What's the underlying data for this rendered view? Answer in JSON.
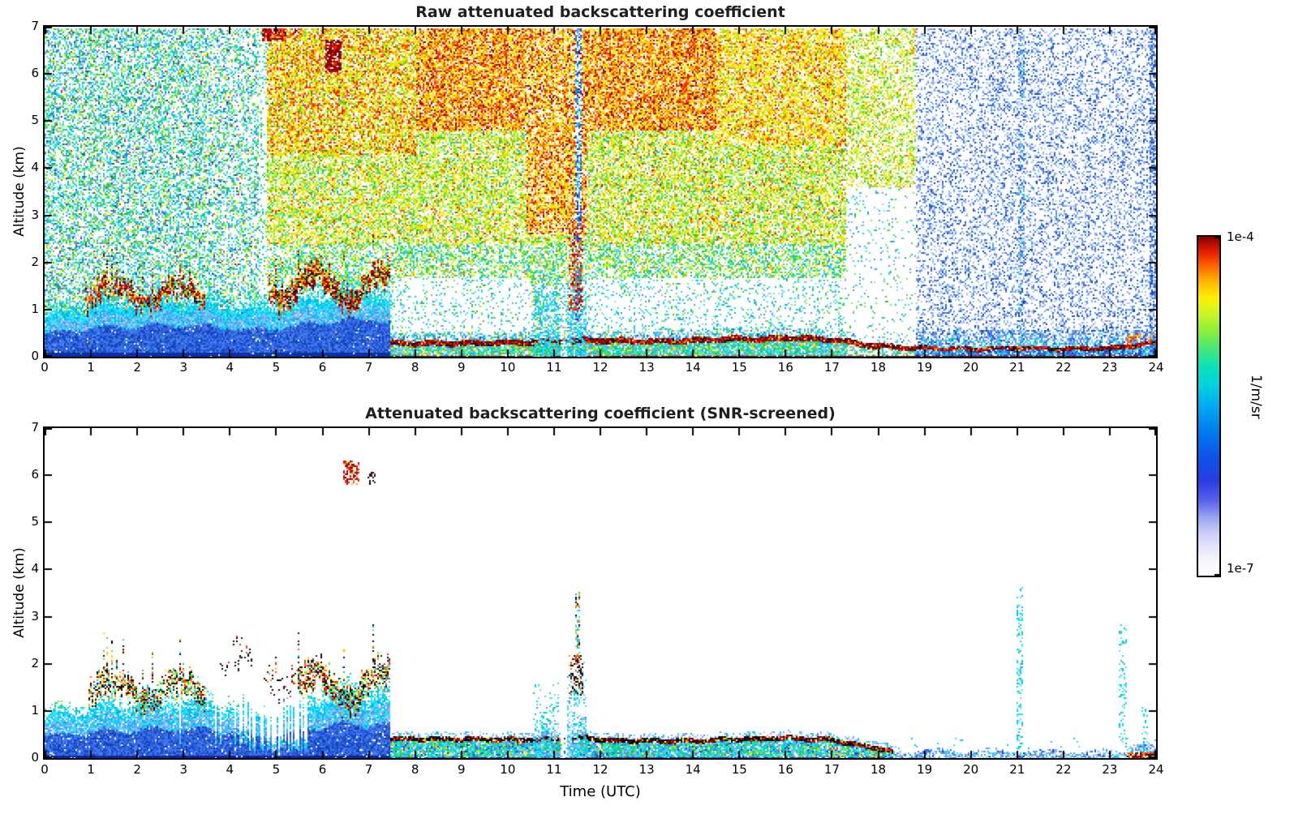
{
  "chart_data": {
    "type": "heatmap",
    "seed": 42,
    "panels": [
      {
        "id": "raw",
        "title": "Raw attenuated backscattering coefficient"
      },
      {
        "id": "screened",
        "title": "Attenuated backscattering coefficient (SNR-screened)"
      }
    ],
    "x_axis": {
      "label": "Time (UTC)",
      "min": 0,
      "max": 24,
      "tick_labels": [
        "0",
        "1",
        "2",
        "3",
        "4",
        "5",
        "6",
        "7",
        "8",
        "9",
        "10",
        "11",
        "12",
        "13",
        "14",
        "15",
        "16",
        "17",
        "18",
        "19",
        "20",
        "21",
        "22",
        "23",
        "24"
      ]
    },
    "y_axis": {
      "label": "Altitude (km)",
      "min": 0,
      "max": 7,
      "tick_labels": [
        "0",
        "1",
        "2",
        "3",
        "4",
        "5",
        "6",
        "7"
      ]
    },
    "colorbar": {
      "unit_label": "1/m/sr",
      "max_label": "1e-4",
      "min_label": "1e-7",
      "stops": [
        [
          0,
          "#ffffff"
        ],
        [
          0.05,
          "#f4f4ff"
        ],
        [
          0.09,
          "#e2e2fa"
        ],
        [
          0.13,
          "#c6caf6"
        ],
        [
          0.17,
          "#9aa6f0"
        ],
        [
          0.22,
          "#5b63ea"
        ],
        [
          0.28,
          "#2a3ce4"
        ],
        [
          0.34,
          "#1050e8"
        ],
        [
          0.42,
          "#0078f0"
        ],
        [
          0.5,
          "#00aaf0"
        ],
        [
          0.56,
          "#00d2e0"
        ],
        [
          0.62,
          "#10e0b8"
        ],
        [
          0.67,
          "#46e878"
        ],
        [
          0.72,
          "#8aee3c"
        ],
        [
          0.77,
          "#c8f42a"
        ],
        [
          0.82,
          "#fff000"
        ],
        [
          0.87,
          "#ffb400"
        ],
        [
          0.915,
          "#ff6400"
        ],
        [
          0.955,
          "#e62000"
        ],
        [
          1,
          "#8c0000"
        ]
      ]
    },
    "palettes": {
      "blue": [
        "#1e53d2",
        "#2c62e0",
        "#3a70e8",
        "#1440b4",
        "#4a7ff0"
      ],
      "blueLight": [
        "#6f9df2",
        "#86aef5",
        "#9dbef7",
        "#5b8df0",
        "#b4cdf8"
      ],
      "cyan": [
        "#00c8f0",
        "#10d6f6",
        "#2ce0fa",
        "#00b4e6",
        "#48e8ff"
      ],
      "teal": [
        "#00e0c8",
        "#20ead2",
        "#00ccb4"
      ],
      "green": [
        "#28c828",
        "#3cd636",
        "#55e044",
        "#76e83a"
      ],
      "yellowgreen": [
        "#9cee32",
        "#b8f22e",
        "#d2f62a"
      ],
      "yellow": [
        "#eef200",
        "#ffe900",
        "#ffdb00"
      ],
      "orange": [
        "#ffb800",
        "#ff9c00",
        "#ff7d00",
        "#ff5f00"
      ],
      "red": [
        "#ff3c14",
        "#ef2505",
        "#d81400"
      ],
      "darkred": [
        "#b00000",
        "#930000",
        "#760000"
      ],
      "black": [
        "#151515",
        "#000000"
      ],
      "navy": [
        "#0a1e96",
        "#0c2caa"
      ]
    },
    "profiles": {
      "mix_height": [
        [
          0,
          0.85
        ],
        [
          0.5,
          0.95
        ],
        [
          1,
          1.05
        ],
        [
          1.5,
          1.05
        ],
        [
          2,
          1.1
        ],
        [
          2.5,
          1.15
        ],
        [
          3,
          1.15
        ],
        [
          3.5,
          1.1
        ],
        [
          4,
          1.05
        ],
        [
          4.5,
          0.95
        ],
        [
          5,
          1.05
        ],
        [
          5.5,
          1.15
        ],
        [
          6,
          1.25
        ],
        [
          6.5,
          1.3
        ],
        [
          7,
          1.35
        ],
        [
          7.45,
          1.3
        ]
      ],
      "red_line": [
        [
          7.5,
          0.3
        ],
        [
          9,
          0.3
        ],
        [
          10.5,
          0.32
        ],
        [
          11,
          0.33
        ],
        [
          11.5,
          0.35
        ],
        [
          12,
          0.36
        ],
        [
          13,
          0.34
        ],
        [
          14,
          0.36
        ],
        [
          15,
          0.4
        ],
        [
          15.5,
          0.38
        ],
        [
          16,
          0.42
        ],
        [
          16.5,
          0.4
        ],
        [
          17,
          0.38
        ],
        [
          17.5,
          0.3
        ],
        [
          18,
          0.24
        ],
        [
          18.8,
          0.2
        ],
        [
          20,
          0.18
        ],
        [
          21,
          0.2
        ],
        [
          22,
          0.18
        ],
        [
          23,
          0.2
        ],
        [
          23.4,
          0.24
        ],
        [
          24,
          0.3
        ]
      ],
      "black_line": [
        [
          7.5,
          0.42
        ],
        [
          9,
          0.42
        ],
        [
          10.5,
          0.4
        ],
        [
          11,
          0.42
        ],
        [
          11.7,
          0.45
        ],
        [
          12,
          0.4
        ],
        [
          13,
          0.38
        ],
        [
          14,
          0.38
        ],
        [
          15,
          0.42
        ],
        [
          16,
          0.44
        ],
        [
          17,
          0.4
        ],
        [
          17.5,
          0.3
        ],
        [
          18,
          0.22
        ],
        [
          18.3,
          0.15
        ]
      ]
    },
    "raw": {
      "noise_regions": [
        {
          "t": [
            21.0,
            21.14
          ],
          "a": [
            0,
            7
          ],
          "d": 0.55,
          "pal": {
            "blueLight": 3,
            "blue": 2,
            "cyan": 1
          }
        },
        {
          "t": [
            23.84,
            24
          ],
          "a": [
            0,
            7
          ],
          "d": 0.6,
          "pal": {
            "blue": 3,
            "blueLight": 2
          }
        },
        {
          "t": [
            18.8,
            24
          ],
          "a": [
            0,
            7
          ],
          "d": 0.3,
          "pal": {
            "blueLight": 3,
            "blue": 1.6
          }
        },
        {
          "t": [
            17.3,
            18.8
          ],
          "a": [
            3.6,
            7
          ],
          "d": 0.45,
          "pal": {
            "yellowgreen": 3,
            "yellow": 2,
            "green": 2,
            "orange": 1
          }
        },
        {
          "t": [
            17.3,
            18.8
          ],
          "a": [
            0,
            3.6
          ],
          "d": 0.06,
          "pal": {
            "cyan": 1,
            "green": 1,
            "blueLight": 1
          }
        },
        {
          "t": [
            4.68,
            5.2
          ],
          "a": [
            6.72,
            7
          ],
          "d": 0.85,
          "pal": {
            "darkred": 5,
            "red": 3,
            "orange": 2
          }
        },
        {
          "t": [
            5.3,
            5.5
          ],
          "a": [
            6.85,
            7
          ],
          "d": 0.7,
          "pal": {
            "darkred": 4,
            "red": 2
          }
        },
        {
          "t": [
            6.05,
            6.38
          ],
          "a": [
            6.05,
            6.75
          ],
          "d": 0.8,
          "pal": {
            "darkred": 6,
            "red": 2,
            "black": 1
          }
        },
        {
          "t": [
            11.44,
            11.58
          ],
          "a": [
            0.8,
            7
          ],
          "d": 0.6,
          "pal": {
            "blue": 3,
            "cyan": 2,
            "darkred": 1
          }
        },
        {
          "t": [
            7.5,
            10.5
          ],
          "a": [
            0.55,
            1.7
          ],
          "d": 0.13,
          "pal": {
            "cyan": 2,
            "green": 1,
            "blueLight": 1
          }
        },
        {
          "t": [
            11.7,
            17.3
          ],
          "a": [
            0.62,
            1.7
          ],
          "d": 0.15,
          "pal": {
            "cyan": 2,
            "green": 1,
            "blueLight": 1
          }
        },
        {
          "t": [
            10.4,
            11.7
          ],
          "a": [
            2.6,
            7
          ],
          "d": 0.7,
          "pal": {
            "orange": 3,
            "yellow": 3,
            "red": 2,
            "darkred": 1,
            "yellowgreen": 1
          }
        },
        {
          "t": [
            8,
            14.5
          ],
          "a": [
            4.8,
            7
          ],
          "d": 0.78,
          "pal": {
            "orange": 3,
            "yellow": 3,
            "red": 2,
            "darkred": 0.8
          }
        },
        {
          "t": [
            14.5,
            17.3
          ],
          "a": [
            4.5,
            7
          ],
          "d": 0.68,
          "pal": {
            "yellow": 4,
            "orange": 2.5,
            "red": 1,
            "yellowgreen": 1.5,
            "green": 0.5
          }
        },
        {
          "t": [
            4.78,
            8
          ],
          "a": [
            4.3,
            7
          ],
          "d": 0.72,
          "pal": {
            "yellow": 3,
            "orange": 2.5,
            "red": 1.5,
            "yellowgreen": 1,
            "green": 1
          }
        },
        {
          "t": [
            4.78,
            17.3
          ],
          "a": [
            2.4,
            4.8
          ],
          "d": 0.62,
          "pal": {
            "yellowgreen": 3,
            "yellow": 2.5,
            "green": 2,
            "orange": 1,
            "cyan": 0.5,
            "red": 0.3
          }
        },
        {
          "t": [
            4.78,
            17.3
          ],
          "a": [
            1.5,
            2.4
          ],
          "d": 0.5,
          "pal": {
            "green": 3,
            "cyan": 2.5,
            "yellowgreen": 1.5,
            "yellow": 1,
            "orange": 0.4
          }
        },
        {
          "t": [
            4.78,
            17.3
          ],
          "a": [
            0,
            1.5
          ],
          "d": 0.3,
          "pal": {
            "cyan": 3,
            "green": 2,
            "blueLight": 1.5,
            "yellow": 0.5
          }
        },
        {
          "t": [
            4.6,
            4.78
          ],
          "a": [
            0,
            7
          ],
          "d": 0.18,
          "pal": {
            "cyan": 1,
            "green": 1
          }
        },
        {
          "t": [
            3.5,
            4.6
          ],
          "a": [
            0,
            7
          ],
          "d": 0.4,
          "pal": {
            "cyan": 3,
            "green": 2.5,
            "blueLight": 1.5,
            "yellowgreen": 1,
            "teal": 1,
            "yellow": 0.4,
            "red": 0.15,
            "blue": 1
          }
        },
        {
          "t": [
            0,
            3.5
          ],
          "a": [
            0,
            7
          ],
          "d": 0.5,
          "pal": {
            "cyan": 3,
            "green": 2.5,
            "blueLight": 1.5,
            "yellowgreen": 1,
            "teal": 1,
            "yellow": 0.4,
            "red": 0.15,
            "blue": 1
          }
        }
      ],
      "aerosol_layers": [
        {
          "t": [
            0.9,
            3.45
          ],
          "base": 1.35,
          "amp": 0.22,
          "thick": 0.34,
          "d": 0.75,
          "spike": 0.7,
          "pal": {
            "darkred": 4,
            "red": 2.5,
            "orange": 2,
            "black": 1.5,
            "yellow": 1,
            "green": 0.5
          }
        },
        {
          "t": [
            4.85,
            7.45
          ],
          "base": 1.5,
          "amp": 0.3,
          "thick": 0.42,
          "d": 0.8,
          "spike": 0.8,
          "pal": {
            "darkred": 4,
            "red": 2.5,
            "orange": 2.5,
            "black": 1.5,
            "yellow": 1,
            "green": 0.5
          }
        }
      ],
      "columns": [
        {
          "t": [
            10.55,
            11.08
          ],
          "aTop": 2.3,
          "d": 0.65,
          "pal": {
            "cyan": 3,
            "teal": 1.5,
            "blueLight": 1,
            "green": 0.7
          }
        },
        {
          "t": [
            11.3,
            11.68
          ],
          "aTop": 2.0,
          "d": 0.7,
          "pal": {
            "cyan": 3,
            "teal": 1,
            "blueLight": 1
          }
        },
        {
          "t": [
            11.32,
            11.62
          ],
          "aRange": [
            1.0,
            2.9
          ],
          "d": 0.4,
          "pal": {
            "red": 3,
            "darkred": 2,
            "orange": 2
          }
        }
      ],
      "band": {
        "line": {
          "darkred": 5,
          "red": 2,
          "black": 2,
          "orange": 1
        },
        "below": {
          "cyan": 2.5,
          "green": 2,
          "teal": 1.2,
          "blueLight": 1.2,
          "yellow": 0.8
        },
        "above": {
          "cyan": 3,
          "blueLight": 2,
          "blue": 1
        },
        "tail_above": {
          "blueLight": 3,
          "blue": 2,
          "cyan": 0.6
        },
        "late_orange": {
          "orange": 3,
          "red": 2,
          "yellow": 1
        }
      }
    },
    "screened": {
      "aerosol_layers": [
        {
          "t": [
            0.95,
            3.45
          ],
          "base": 1.45,
          "amp": 0.25,
          "thick": 0.45,
          "d": 0.6,
          "spike": 0.8,
          "pal": {
            "black": 4,
            "red": 1.5,
            "orange": 1.5,
            "yellow": 1,
            "green": 1.5,
            "cyan": 1
          }
        },
        {
          "t": [
            5.5,
            7.45
          ],
          "base": 1.55,
          "amp": 0.3,
          "thick": 0.5,
          "d": 0.65,
          "spike": 0.9,
          "pal": {
            "black": 4.5,
            "red": 2,
            "orange": 2,
            "yellow": 1,
            "green": 1,
            "cyan": 1
          }
        },
        {
          "t": [
            3.8,
            4.45
          ],
          "base": 2.0,
          "amp": 0.15,
          "thick": 0.22,
          "d": 0.22,
          "spike": 0.3,
          "pal": {
            "black": 4,
            "red": 1
          }
        },
        {
          "t": [
            4.75,
            5.5
          ],
          "base": 1.8,
          "amp": 0.3,
          "thick": 0.4,
          "d": 0.16,
          "spike": 0.4,
          "pal": {
            "black": 3,
            "red": 1,
            "orange": 0.5
          }
        }
      ],
      "columns": [
        {
          "t": [
            10.55,
            11.08
          ],
          "aTop": 1.6,
          "d": 0.6,
          "pal": {
            "cyan": 3,
            "teal": 1,
            "blueLight": 1.5
          }
        },
        {
          "t": [
            11.3,
            11.68
          ],
          "aTop": 2.25,
          "d": 0.65,
          "pal": {
            "cyan": 3,
            "blueLight": 1.5
          }
        },
        {
          "t": [
            11.34,
            11.62
          ],
          "aRange": [
            1.35,
            2.25
          ],
          "d": 0.4,
          "pal": {
            "black": 3,
            "red": 1,
            "orange": 1
          }
        },
        {
          "t": [
            11.47,
            11.53
          ],
          "aRange": [
            2.2,
            3.55
          ],
          "d": 0.45,
          "pal": {
            "cyan": 2,
            "black": 1,
            "orange": 1
          }
        }
      ],
      "blobs": [
        {
          "t": [
            6.45,
            6.78
          ],
          "a": [
            5.82,
            6.28
          ],
          "d": 0.55,
          "pal": {
            "red": 3,
            "darkred": 3,
            "orange": 1
          }
        },
        {
          "t": [
            7.0,
            7.12
          ],
          "a": [
            5.8,
            6.05
          ],
          "d": 0.5,
          "pal": {
            "black": 4,
            "darkred": 1
          }
        }
      ],
      "spikes": [
        {
          "t": [
            21.0,
            21.1
          ],
          "a": [
            0.2,
            3.6
          ],
          "d": 0.3,
          "pal": {
            "cyan": 4,
            "teal": 1
          }
        },
        {
          "t": [
            23.22,
            23.34
          ],
          "a": [
            0.3,
            2.9
          ],
          "d": 0.22,
          "pal": {
            "cyan": 3,
            "teal": 1
          }
        },
        {
          "t": [
            23.7,
            23.8
          ],
          "a": [
            0.3,
            1.1
          ],
          "d": 0.18,
          "pal": {
            "cyan": 3
          }
        }
      ],
      "band": {
        "line": {
          "black": 5,
          "darkred": 1.5,
          "red": 1,
          "orange": 0.7,
          "yellow": 0.4
        },
        "below": {
          "cyan": 2.5,
          "teal": 1.5,
          "green": 1.5,
          "blueLight": 1.2,
          "blue": 1,
          "yellow": 0.3
        },
        "above": {
          "blueLight": 2,
          "cyan": 1
        },
        "hot_ground": {
          "black": 2,
          "red": 2,
          "orange": 2,
          "darkred": 1
        },
        "descent_dots": {
          "orange": 2,
          "yellow": 2,
          "green": 1,
          "red": 1
        },
        "tail": {
          "blueLight": 3,
          "cyan": 1.5,
          "blue": 1
        }
      }
    }
  }
}
